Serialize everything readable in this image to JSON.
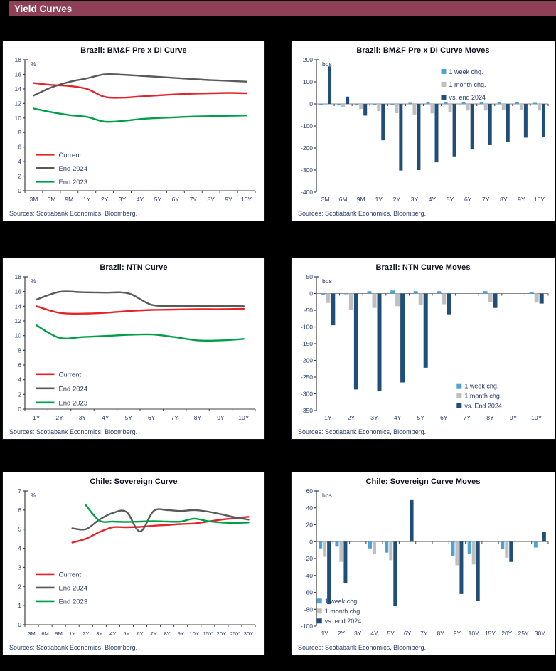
{
  "header": {
    "title": "Yield Curves",
    "bg_color": "#8E4156",
    "text_color": "#FFFFFF"
  },
  "page": {
    "background": "#000000",
    "panel_background": "#FFFFFF"
  },
  "colors": {
    "current_red": "#E5232B",
    "end2024_gray": "#58595B",
    "end2023_green": "#009E49",
    "week_lightblue": "#4DA3D8",
    "month_lightgray": "#BFBFBF",
    "vs_navy": "#1F4E79",
    "axis": "#404040",
    "text_navy": "#2B3A67"
  },
  "chart_data": [
    {
      "type": "line",
      "title": "Brazil: BM&F Pre x DI Curve",
      "unit": "%",
      "ylim": [
        0,
        18
      ],
      "ytick": 2,
      "grid": false,
      "legend_position": "lower-left",
      "legend": {
        "x": 0.12,
        "y": 0.67,
        "dy": 19
      },
      "categories": [
        "3M",
        "6M",
        "9M",
        "1Y",
        "2Y",
        "3Y",
        "4Y",
        "5Y",
        "6Y",
        "7Y",
        "8Y",
        "9Y",
        "10Y"
      ],
      "series": [
        {
          "name": "Current",
          "color": "#E5232B",
          "values": [
            14.8,
            14.55,
            14.4,
            14.0,
            12.9,
            12.8,
            12.95,
            13.1,
            13.25,
            13.35,
            13.4,
            13.45,
            13.4
          ]
        },
        {
          "name": "End 2024",
          "color": "#58595B",
          "values": [
            13.1,
            14.2,
            14.95,
            15.45,
            16.0,
            15.95,
            15.8,
            15.65,
            15.5,
            15.35,
            15.2,
            15.1,
            15.0
          ]
        },
        {
          "name": "End 2023",
          "color": "#009E49",
          "values": [
            11.3,
            10.8,
            10.4,
            10.15,
            9.5,
            9.6,
            9.85,
            10.0,
            10.1,
            10.2,
            10.25,
            10.3,
            10.35
          ]
        }
      ],
      "sources": "Sources: Scotiabank Economics, Bloomberg."
    },
    {
      "type": "bar",
      "title": "Brazil: BM&F Pre x DI Curve Moves",
      "unit": "bps",
      "ylim": [
        -400,
        200
      ],
      "ytick": 100,
      "grid": false,
      "legend_position": "upper-right",
      "legend": {
        "x": 0.57,
        "y": 0.12,
        "dy": 18
      },
      "categories": [
        "3M",
        "6M",
        "9M",
        "1Y",
        "2Y",
        "3Y",
        "4Y",
        "5Y",
        "6Y",
        "7Y",
        "8Y",
        "9Y",
        "10Y"
      ],
      "series": [
        {
          "name": "1 week chg.",
          "color": "#4DA3D8",
          "values": [
            -4,
            -7,
            -7,
            -6,
            -6,
            5,
            8,
            8,
            8,
            8,
            8,
            8,
            5
          ]
        },
        {
          "name": "1 month chg.",
          "color": "#BFBFBF",
          "values": [
            -5,
            -13,
            -23,
            -33,
            -42,
            -48,
            -43,
            -38,
            -30,
            -30,
            -28,
            -28,
            -30
          ]
        },
        {
          "name": "vs. end 2024",
          "color": "#1F4E79",
          "values": [
            170,
            33,
            -53,
            -165,
            -302,
            -300,
            -265,
            -238,
            -207,
            -187,
            -172,
            -153,
            -150
          ]
        }
      ],
      "sources": "Sources: Scotiabank Economics, Bloomberg."
    },
    {
      "type": "line",
      "title": "Brazil: NTN Curve",
      "unit": "%",
      "ylim": [
        0,
        18
      ],
      "ytick": 2,
      "grid": false,
      "legend_position": "lower-left",
      "legend": {
        "x": 0.12,
        "y": 0.68,
        "dy": 20
      },
      "categories": [
        "1Y",
        "2Y",
        "3Y",
        "4Y",
        "5Y",
        "6Y",
        "7Y",
        "8Y",
        "9Y",
        "10Y"
      ],
      "series": [
        {
          "name": "Current",
          "color": "#E5232B",
          "values": [
            14.0,
            13.1,
            13.0,
            13.1,
            13.35,
            13.5,
            13.55,
            13.6,
            13.6,
            13.65
          ]
        },
        {
          "name": "End 2024",
          "color": "#58595B",
          "values": [
            14.9,
            15.95,
            15.9,
            15.85,
            15.75,
            14.2,
            14.05,
            14.05,
            14.05,
            14.0
          ]
        },
        {
          "name": "End 2023",
          "color": "#009E49",
          "values": [
            11.4,
            9.7,
            9.8,
            9.95,
            10.1,
            10.15,
            9.8,
            9.35,
            9.35,
            9.55
          ]
        }
      ],
      "sources": "Sources: Scotiabank Economics, Bloomberg."
    },
    {
      "type": "bar",
      "title": "Brazil: NTN Curve Moves",
      "unit": "bps",
      "ylim": [
        -350,
        50
      ],
      "ytick": 50,
      "grid": false,
      "legend_position": "lower-right",
      "legend": {
        "x": 0.63,
        "y": 0.77,
        "dy": 14
      },
      "categories": [
        "1Y",
        "2Y",
        "3Y",
        "4Y",
        "5Y",
        "6Y",
        "7Y",
        "8Y",
        "9Y",
        "10Y"
      ],
      "series": [
        {
          "name": "1 week chg.",
          "color": "#4DA3D8",
          "values": [
            -3,
            -2,
            7,
            9,
            7,
            7,
            0,
            7,
            0,
            5
          ]
        },
        {
          "name": "1 month chg.",
          "color": "#BFBFBF",
          "values": [
            -28,
            -48,
            -43,
            -38,
            -34,
            -32,
            0,
            -26,
            0,
            -27
          ]
        },
        {
          "name": "vs. End 2024",
          "color": "#1F4E79",
          "values": [
            -95,
            -287,
            -292,
            -266,
            -222,
            -62,
            0,
            -43,
            0,
            -30
          ]
        }
      ],
      "sources": "Sources: Scotiabank Economics, Bloomberg."
    },
    {
      "type": "line",
      "title": "Chile: Sovereign Curve",
      "unit": "%",
      "ylim": [
        0,
        7
      ],
      "ytick": 1,
      "grid": false,
      "legend_position": "lower-left",
      "legend": {
        "x": 0.12,
        "y": 0.58,
        "dy": 19
      },
      "categories": [
        "3M",
        "6M",
        "9M",
        "1Y",
        "2Y",
        "3Y",
        "4Y",
        "5Y",
        "6Y",
        "7Y",
        "8Y",
        "9Y",
        "10Y",
        "15Y",
        "20Y",
        "25Y",
        "30Y"
      ],
      "series": [
        {
          "name": "Current",
          "color": "#E5232B",
          "values": [
            null,
            null,
            null,
            4.3,
            4.5,
            4.85,
            5.1,
            5.1,
            5.12,
            5.18,
            5.22,
            5.27,
            5.3,
            5.4,
            5.5,
            5.58,
            5.65
          ]
        },
        {
          "name": "End 2024",
          "color": "#58595B",
          "values": [
            null,
            null,
            null,
            5.05,
            5.0,
            5.5,
            5.85,
            5.9,
            4.88,
            5.95,
            6.0,
            5.95,
            6.0,
            5.92,
            5.78,
            5.62,
            5.5
          ]
        },
        {
          "name": "End 2023",
          "color": "#009E49",
          "values": [
            null,
            null,
            null,
            null,
            6.25,
            5.45,
            5.4,
            5.38,
            5.4,
            5.42,
            5.4,
            5.4,
            5.55,
            5.42,
            5.35,
            5.33,
            5.35
          ]
        }
      ],
      "sources": "Sources: Scotiabank Economics, Bloomberg."
    },
    {
      "type": "bar",
      "title": "Chile: Sovereign Curve Moves",
      "unit": "bps",
      "ylim": [
        -100,
        60
      ],
      "ytick": 20,
      "grid": false,
      "legend_position": "lower-left",
      "legend": {
        "x": 0.09,
        "y": 0.77,
        "dy": 14
      },
      "categories": [
        "1Y",
        "2Y",
        "3Y",
        "4Y",
        "5Y",
        "6Y",
        "7Y",
        "8Y",
        "9Y",
        "10Y",
        "15Y",
        "20Y",
        "25Y",
        "30Y"
      ],
      "series": [
        {
          "name": "1 week chg.",
          "color": "#4DA3D8",
          "values": [
            -8,
            -6,
            0,
            -8,
            -13,
            0,
            0,
            0,
            -17,
            -14,
            0,
            -9,
            0,
            -7
          ]
        },
        {
          "name": "1 month chg.",
          "color": "#BFBFBF",
          "values": [
            -18,
            -24,
            0,
            -15,
            -22,
            0,
            0,
            0,
            -28,
            -27,
            0,
            -19,
            0,
            0
          ]
        },
        {
          "name": "vs. end 2024",
          "color": "#1F4E79",
          "values": [
            -74,
            -49,
            0,
            0,
            -76,
            50,
            0,
            0,
            -62,
            -70,
            0,
            -24,
            0,
            12
          ]
        }
      ],
      "sources": "Sources: Scotiabank Economics, Bloomberg."
    }
  ]
}
